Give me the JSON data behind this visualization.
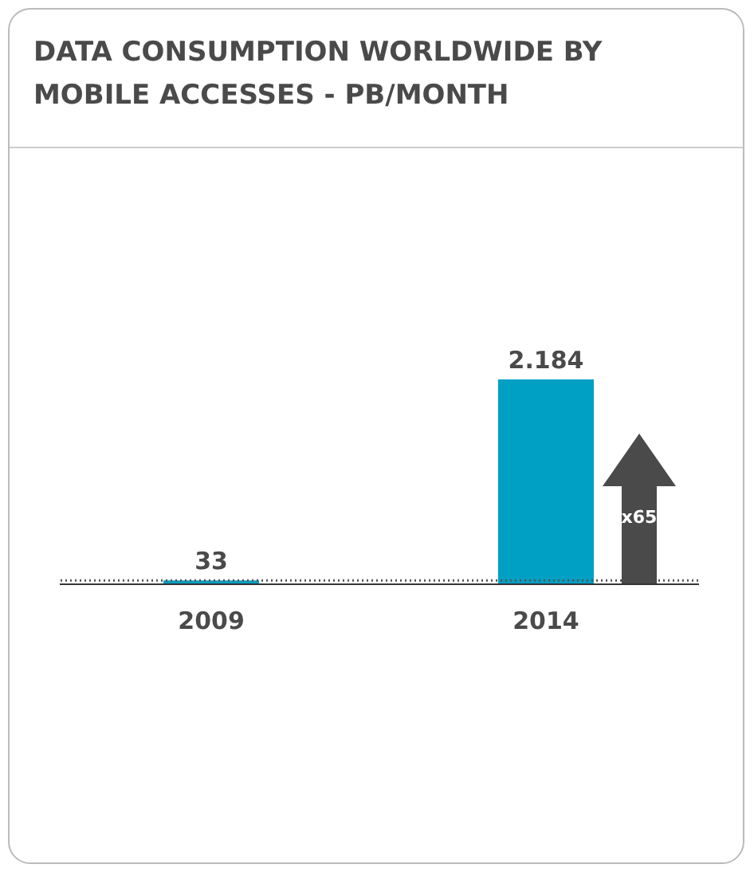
{
  "chart_data": {
    "type": "bar",
    "title": "DATA CONSUMPTION WORLDWIDE BY MOBILE ACCESSES - PB/MONTH",
    "categories": [
      "2009",
      "2014"
    ],
    "values": [
      33,
      2184
    ],
    "value_labels": [
      "33",
      "2.184"
    ],
    "color": "#00a0c4",
    "ref_lines": [
      {
        "axis": "y",
        "value": 33,
        "color": "#555555",
        "line_style": "dotted"
      }
    ],
    "annotations": [
      "x65"
    ]
  }
}
